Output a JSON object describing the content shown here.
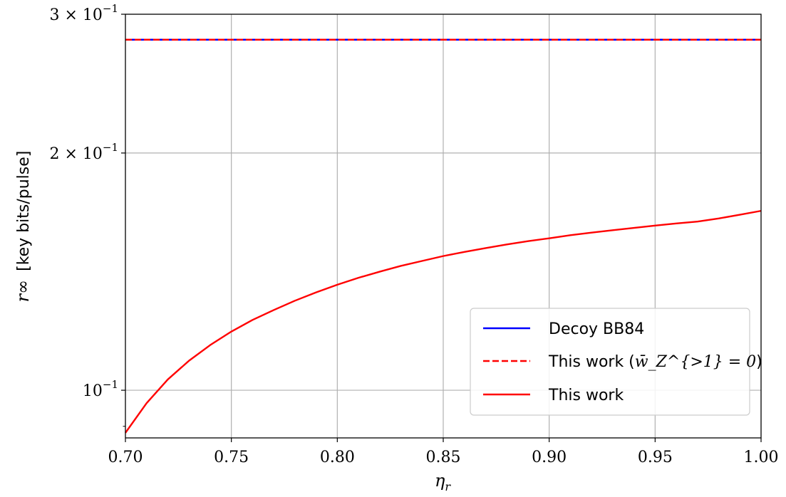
{
  "chart_data": {
    "type": "line",
    "xlabel": "η_r",
    "ylabel_math": "r∞",
    "ylabel_text": "[key bits/pulse]",
    "xlim": [
      0.7,
      1.0
    ],
    "ylim": [
      0.087,
      0.3
    ],
    "yscale": "log",
    "grid": true,
    "x_ticks": [
      0.7,
      0.75,
      0.8,
      0.85,
      0.9,
      0.95,
      1.0
    ],
    "x_tick_labels": [
      "0.70",
      "0.75",
      "0.80",
      "0.85",
      "0.90",
      "0.95",
      "1.00"
    ],
    "y_ticks": [
      {
        "value": 0.1,
        "mantissa": "",
        "exp": "−1"
      },
      {
        "value": 0.2,
        "mantissa": "2 × ",
        "exp": "−1"
      },
      {
        "value": 0.3,
        "mantissa": "3 × ",
        "exp": "−1"
      }
    ],
    "legend_position": "lower-right",
    "series": [
      {
        "name": "Decoy BB84",
        "color": "#0000ff",
        "style": "solid",
        "x": [
          0.7,
          1.0
        ],
        "values": [
          0.2785,
          0.2785
        ]
      },
      {
        "name_prefix": "This work (",
        "name_math": "w̄_Z^{>1} = 0",
        "name_suffix": ")",
        "color": "#ff0000",
        "style": "dashed",
        "x": [
          0.7,
          1.0
        ],
        "values": [
          0.2785,
          0.2785
        ]
      },
      {
        "name": "This work",
        "color": "#ff0000",
        "style": "solid",
        "x": [
          0.7,
          0.71,
          0.72,
          0.73,
          0.74,
          0.75,
          0.76,
          0.77,
          0.78,
          0.79,
          0.8,
          0.81,
          0.82,
          0.83,
          0.84,
          0.85,
          0.86,
          0.87,
          0.88,
          0.89,
          0.9,
          0.91,
          0.92,
          0.93,
          0.94,
          0.95,
          0.96,
          0.97,
          0.98,
          0.99,
          1.0
        ],
        "values": [
          0.0883,
          0.0963,
          0.1032,
          0.109,
          0.1141,
          0.1187,
          0.1228,
          0.1264,
          0.1299,
          0.1331,
          0.1361,
          0.1389,
          0.1414,
          0.1438,
          0.1459,
          0.148,
          0.1498,
          0.1515,
          0.1531,
          0.1546,
          0.1559,
          0.1573,
          0.1585,
          0.1596,
          0.1607,
          0.1618,
          0.1628,
          0.1637,
          0.1652,
          0.167,
          0.1689
        ]
      }
    ]
  }
}
